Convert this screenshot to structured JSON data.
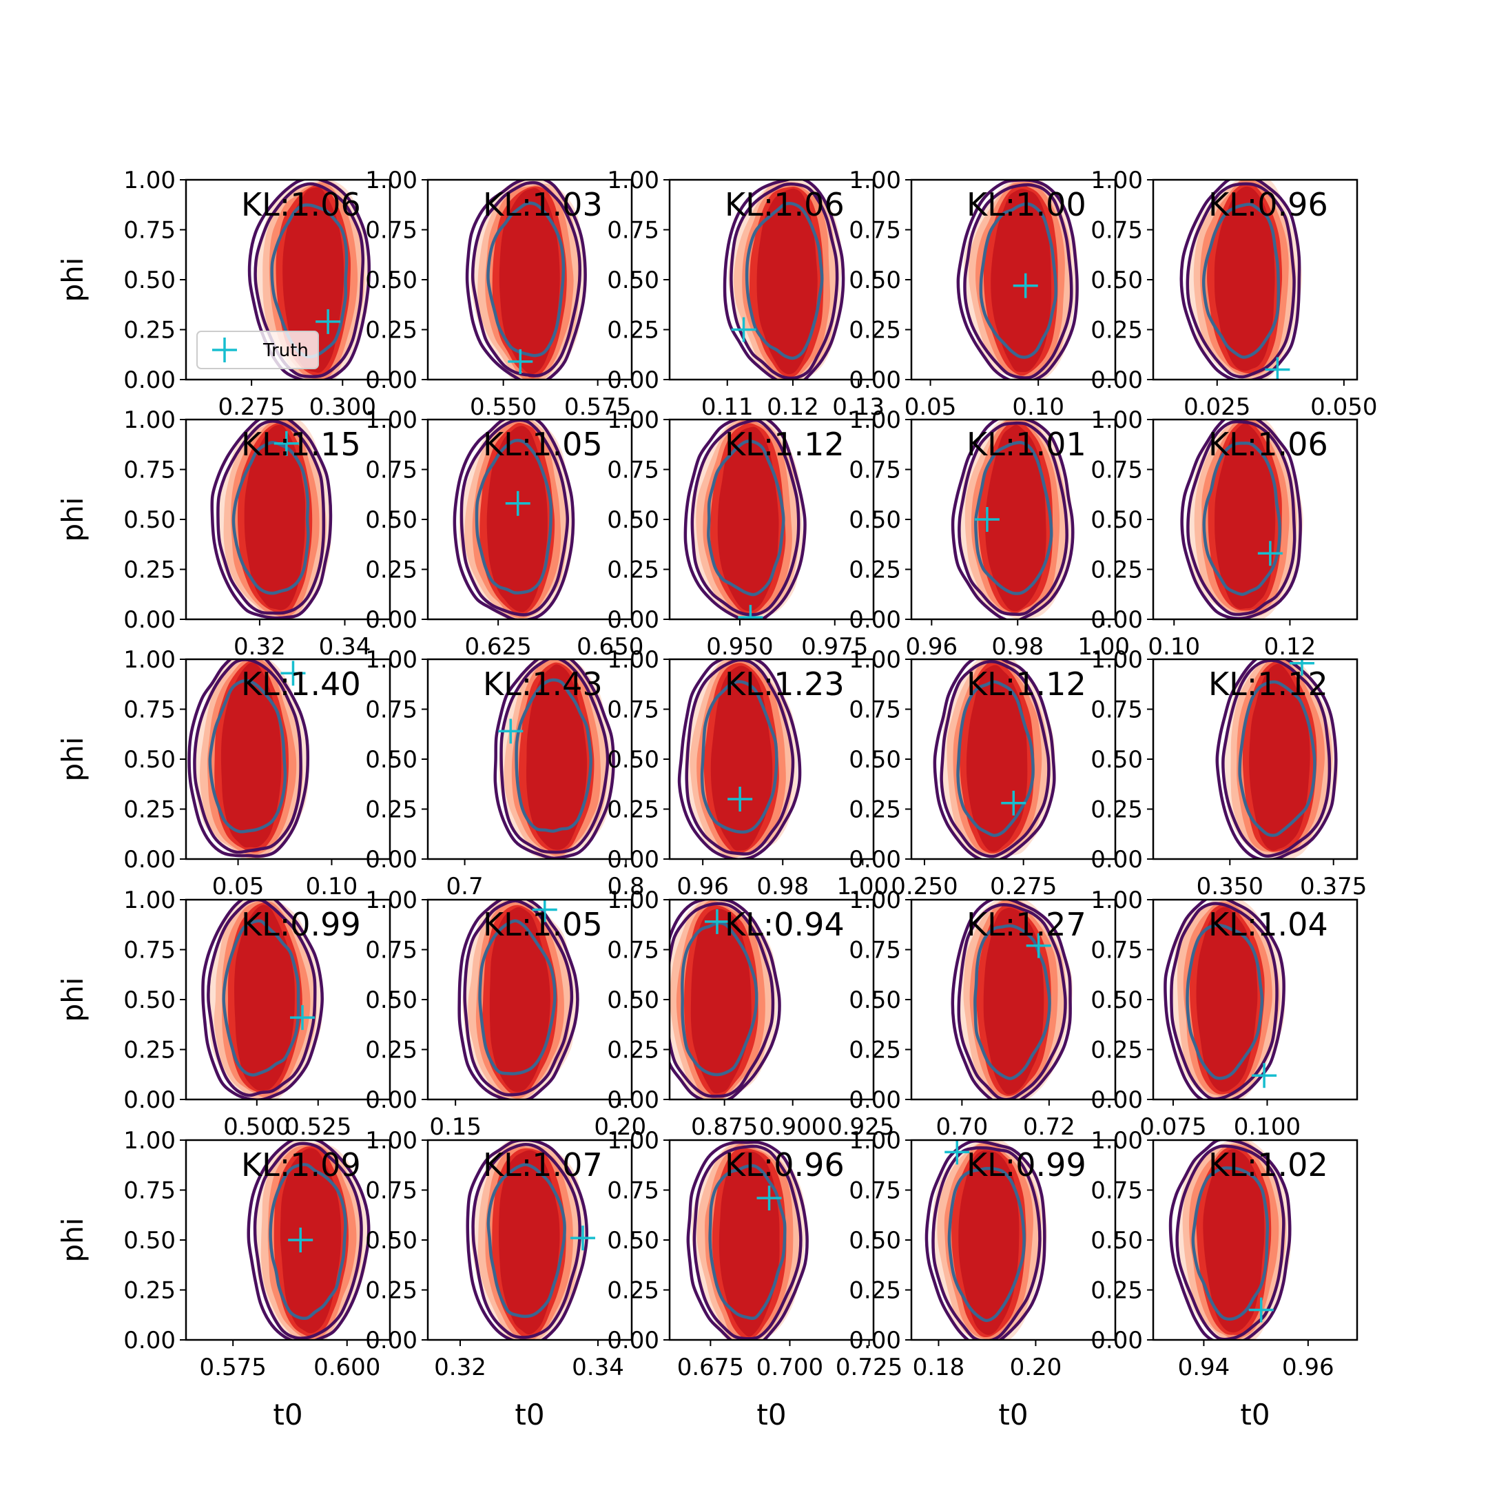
{
  "colors": {
    "fill_outer": "#fde0d2",
    "fill_mid1": "#fcbba1",
    "fill_mid2": "#fb8a6b",
    "fill_inner1": "#e32f27",
    "fill_inner2": "#c9181d",
    "contour_outer": "#4a0f5e",
    "contour_inner": "#3a6690",
    "truth": "#17becf"
  },
  "chart_data": [
    {
      "type": "contour",
      "panel": 1,
      "kl": "KL:1.06",
      "xlabel": "",
      "ylabel": "phi",
      "xlim": [
        0.257,
        0.313
      ],
      "ylim": [
        0,
        1
      ],
      "x_ticks": [
        "0.275",
        "0.300"
      ],
      "x_tick_values": [
        0.275,
        0.3
      ],
      "y_ticks": [
        "0.00",
        "0.25",
        "0.50",
        "0.75",
        "1.00"
      ],
      "center_x": 0.292,
      "truth": {
        "x": 0.296,
        "y": 0.29
      },
      "legend": {
        "label": "Truth",
        "location": "lower-left"
      }
    },
    {
      "type": "contour",
      "panel": 2,
      "kl": "KL:1.03",
      "xlabel": "",
      "ylabel": "",
      "xlim": [
        0.53,
        0.584
      ],
      "ylim": [
        0,
        1
      ],
      "x_ticks": [
        "0.550",
        "0.575"
      ],
      "x_tick_values": [
        0.55,
        0.575
      ],
      "y_ticks": [
        "0.00",
        "0.25",
        "0.50",
        "0.75",
        "1.00"
      ],
      "center_x": 0.557,
      "truth": {
        "x": 0.5545,
        "y": 0.09
      }
    },
    {
      "type": "contour",
      "panel": 3,
      "kl": "KL:1.06",
      "xlabel": "",
      "ylabel": "",
      "xlim": [
        0.1012,
        0.1323
      ],
      "ylim": [
        0,
        1
      ],
      "x_ticks": [
        "0.11",
        "0.12",
        "0.13"
      ],
      "x_tick_values": [
        0.11,
        0.12,
        0.13
      ],
      "y_ticks": [
        "0.00",
        "0.25",
        "0.50",
        "0.75",
        "1.00"
      ],
      "center_x": 0.1192,
      "truth": {
        "x": 0.1125,
        "y": 0.25
      }
    },
    {
      "type": "contour",
      "panel": 4,
      "kl": "KL:1.00",
      "xlabel": "",
      "ylabel": "",
      "xlim": [
        0.0412,
        0.1357
      ],
      "ylim": [
        0,
        1
      ],
      "x_ticks": [
        "0.05",
        "0.10"
      ],
      "x_tick_values": [
        0.05,
        0.1
      ],
      "y_ticks": [
        "0.00",
        "0.25",
        "0.50",
        "0.75",
        "1.00"
      ],
      "center_x": 0.0925,
      "truth": {
        "x": 0.0941,
        "y": 0.47
      }
    },
    {
      "type": "contour",
      "panel": 5,
      "kl": "KL:0.96",
      "xlabel": "",
      "ylabel": "",
      "xlim": [
        0.0124,
        0.0526
      ],
      "ylim": [
        0,
        1
      ],
      "x_ticks": [
        "0.025",
        "0.050"
      ],
      "x_tick_values": [
        0.025,
        0.05
      ],
      "y_ticks": [
        "0.00",
        "0.25",
        "0.50",
        "0.75",
        "1.00"
      ],
      "center_x": 0.0306,
      "truth": {
        "x": 0.0369,
        "y": 0.05
      }
    },
    {
      "type": "contour",
      "panel": 6,
      "kl": "KL:1.15",
      "xlabel": "",
      "ylabel": "phi",
      "xlim": [
        0.3027,
        0.3506
      ],
      "ylim": [
        0,
        1
      ],
      "x_ticks": [
        "0.32",
        "0.34"
      ],
      "x_tick_values": [
        0.32,
        0.34
      ],
      "y_ticks": [
        "0.00",
        "0.25",
        "0.50",
        "0.75",
        "1.00"
      ],
      "center_x": 0.3237,
      "truth": {
        "x": 0.3263,
        "y": 0.88
      }
    },
    {
      "type": "contour",
      "panel": 7,
      "kl": "KL:1.05",
      "xlabel": "",
      "ylabel": "",
      "xlim": [
        0.6093,
        0.6548
      ],
      "ylim": [
        0,
        1
      ],
      "x_ticks": [
        "0.625",
        "0.650"
      ],
      "x_tick_values": [
        0.625,
        0.65
      ],
      "y_ticks": [
        "0.00",
        "0.25",
        "0.50",
        "0.75",
        "1.00"
      ],
      "center_x": 0.6293,
      "truth": {
        "x": 0.6294,
        "y": 0.58
      }
    },
    {
      "type": "contour",
      "panel": 8,
      "kl": "KL:1.12",
      "xlabel": "",
      "ylabel": "",
      "xlim": [
        0.9315,
        0.9852
      ],
      "ylim": [
        0,
        1
      ],
      "x_ticks": [
        "0.950",
        "0.975"
      ],
      "x_tick_values": [
        0.95,
        0.975
      ],
      "y_ticks": [
        "0.00",
        "0.25",
        "0.50",
        "0.75",
        "1.00"
      ],
      "center_x": 0.9523,
      "truth": {
        "x": 0.9528,
        "y": 0.01
      }
    },
    {
      "type": "contour",
      "panel": 9,
      "kl": "KL:1.01",
      "xlabel": "",
      "ylabel": "",
      "xlim": [
        0.9553,
        1.0027
      ],
      "ylim": [
        0,
        1
      ],
      "x_ticks": [
        "0.96",
        "0.98",
        "1.00"
      ],
      "x_tick_values": [
        0.96,
        0.98,
        1.0
      ],
      "y_ticks": [
        "0.00",
        "0.25",
        "0.50",
        "0.75",
        "1.00"
      ],
      "center_x": 0.9797,
      "truth": {
        "x": 0.9729,
        "y": 0.5
      }
    },
    {
      "type": "contour",
      "panel": 10,
      "kl": "KL:1.06",
      "xlabel": "",
      "ylabel": "",
      "xlim": [
        0.0964,
        0.1316
      ],
      "ylim": [
        0,
        1
      ],
      "x_ticks": [
        "0.10",
        "0.12"
      ],
      "x_tick_values": [
        0.1,
        0.12
      ],
      "y_ticks": [
        "0.00",
        "0.25",
        "0.50",
        "0.75",
        "1.00"
      ],
      "center_x": 0.1123,
      "truth": {
        "x": 0.1166,
        "y": 0.33
      }
    },
    {
      "type": "contour",
      "panel": 11,
      "kl": "KL:1.40",
      "xlabel": "",
      "ylabel": "phi",
      "xlim": [
        0.0222,
        0.1311
      ],
      "ylim": [
        0,
        1
      ],
      "x_ticks": [
        "0.05",
        "0.10"
      ],
      "x_tick_values": [
        0.05,
        0.1
      ],
      "y_ticks": [
        "0.00",
        "0.25",
        "0.50",
        "0.75",
        "1.00"
      ],
      "center_x": 0.0569,
      "truth": {
        "x": 0.0794,
        "y": 0.93
      }
    },
    {
      "type": "contour",
      "panel": 12,
      "kl": "KL:1.43",
      "xlabel": "",
      "ylabel": "",
      "xlim": [
        0.6771,
        0.8036
      ],
      "ylim": [
        0,
        1
      ],
      "x_ticks": [
        "0.7",
        "0.8"
      ],
      "x_tick_values": [
        0.7,
        0.8
      ],
      "y_ticks": [
        "0.00",
        "0.25",
        "0.50",
        "0.75",
        "1.00"
      ],
      "center_x": 0.7566,
      "truth": {
        "x": 0.7285,
        "y": 0.64
      }
    },
    {
      "type": "contour",
      "panel": 13,
      "kl": "KL:1.23",
      "xlabel": "",
      "ylabel": "",
      "xlim": [
        0.9517,
        1.0027
      ],
      "ylim": [
        0,
        1
      ],
      "x_ticks": [
        "0.96",
        "0.98",
        "1.00"
      ],
      "x_tick_values": [
        0.96,
        0.98,
        1.0
      ],
      "y_ticks": [
        "0.00",
        "0.25",
        "0.50",
        "0.75",
        "1.00"
      ],
      "center_x": 0.9696,
      "truth": {
        "x": 0.9693,
        "y": 0.3
      }
    },
    {
      "type": "contour",
      "panel": 14,
      "kl": "KL:1.12",
      "xlabel": "",
      "ylabel": "",
      "xlim": [
        0.2467,
        0.2982
      ],
      "ylim": [
        0,
        1
      ],
      "x_ticks": [
        "0.250",
        "0.275"
      ],
      "x_tick_values": [
        0.25,
        0.275
      ],
      "y_ticks": [
        "0.00",
        "0.25",
        "0.50",
        "0.75",
        "1.00"
      ],
      "center_x": 0.2683,
      "truth": {
        "x": 0.2725,
        "y": 0.28
      }
    },
    {
      "type": "contour",
      "panel": 15,
      "kl": "KL:1.12",
      "xlabel": "",
      "ylabel": "",
      "xlim": [
        0.3315,
        0.3807
      ],
      "ylim": [
        0,
        1
      ],
      "x_ticks": [
        "0.350",
        "0.375"
      ],
      "x_tick_values": [
        0.35,
        0.375
      ],
      "y_ticks": [
        "0.00",
        "0.25",
        "0.50",
        "0.75",
        "1.00"
      ],
      "center_x": 0.3619,
      "truth": {
        "x": 0.3674,
        "y": 0.98
      }
    },
    {
      "type": "contour",
      "panel": 16,
      "kl": "KL:0.99",
      "xlabel": "",
      "ylabel": "phi",
      "xlim": [
        0.4711,
        0.5543
      ],
      "ylim": [
        0,
        1
      ],
      "x_ticks": [
        "0.500",
        "0.525"
      ],
      "x_tick_values": [
        0.5,
        0.525
      ],
      "y_ticks": [
        "0.00",
        "0.25",
        "0.50",
        "0.75",
        "1.00"
      ],
      "center_x": 0.5028,
      "truth": {
        "x": 0.5186,
        "y": 0.41
      }
    },
    {
      "type": "contour",
      "panel": 17,
      "kl": "KL:1.05",
      "xlabel": "",
      "ylabel": "",
      "xlim": [
        0.1416,
        0.2035
      ],
      "ylim": [
        0,
        1
      ],
      "x_ticks": [
        "0.15",
        "0.20"
      ],
      "x_tick_values": [
        0.15,
        0.2
      ],
      "y_ticks": [
        "0.00",
        "0.25",
        "0.50",
        "0.75",
        "1.00"
      ],
      "center_x": 0.1692,
      "truth": {
        "x": 0.1771,
        "y": 0.95
      }
    },
    {
      "type": "contour",
      "panel": 18,
      "kl": "KL:0.94",
      "xlabel": "",
      "ylabel": "",
      "xlim": [
        0.8549,
        0.9296
      ],
      "ylim": [
        0,
        1
      ],
      "x_ticks": [
        "0.875",
        "0.900",
        "0.925"
      ],
      "x_tick_values": [
        0.875,
        0.9,
        0.925
      ],
      "y_ticks": [
        "0.00",
        "0.25",
        "0.50",
        "0.75",
        "1.00"
      ],
      "center_x": 0.8735,
      "truth": {
        "x": 0.8723,
        "y": 0.89
      }
    },
    {
      "type": "contour",
      "panel": 19,
      "kl": "KL:1.27",
      "xlabel": "",
      "ylabel": "",
      "xlim": [
        0.6884,
        0.7352
      ],
      "ylim": [
        0,
        1
      ],
      "x_ticks": [
        "0.70",
        "0.72"
      ],
      "x_tick_values": [
        0.7,
        0.72
      ],
      "y_ticks": [
        "0.00",
        "0.25",
        "0.50",
        "0.75",
        "1.00"
      ],
      "center_x": 0.7118,
      "truth": {
        "x": 0.7176,
        "y": 0.77
      }
    },
    {
      "type": "contour",
      "panel": 20,
      "kl": "KL:1.04",
      "xlabel": "",
      "ylabel": "",
      "xlim": [
        0.0697,
        0.1239
      ],
      "ylim": [
        0,
        1
      ],
      "x_ticks": [
        "0.075",
        "0.100"
      ],
      "x_tick_values": [
        0.075,
        0.1
      ],
      "y_ticks": [
        "0.00",
        "0.25",
        "0.50",
        "0.75",
        "1.00"
      ],
      "center_x": 0.0892,
      "truth": {
        "x": 0.0992,
        "y": 0.12
      }
    },
    {
      "type": "contour",
      "panel": 21,
      "kl": "KL:1.09",
      "xlabel": "t0",
      "ylabel": "phi",
      "xlim": [
        0.5647,
        0.6094
      ],
      "ylim": [
        0,
        1
      ],
      "x_ticks": [
        "0.575",
        "0.600"
      ],
      "x_tick_values": [
        0.575,
        0.6
      ],
      "y_ticks": [
        "0.00",
        "0.25",
        "0.50",
        "0.75",
        "1.00"
      ],
      "center_x": 0.5919,
      "truth": {
        "x": 0.5898,
        "y": 0.5
      }
    },
    {
      "type": "contour",
      "panel": 22,
      "kl": "KL:1.07",
      "xlabel": "t0",
      "ylabel": "",
      "xlim": [
        0.3153,
        0.3449
      ],
      "ylim": [
        0,
        1
      ],
      "x_ticks": [
        "0.32",
        "0.34"
      ],
      "x_tick_values": [
        0.32,
        0.34
      ],
      "y_ticks": [
        "0.00",
        "0.25",
        "0.50",
        "0.75",
        "1.00"
      ],
      "center_x": 0.3299,
      "truth": {
        "x": 0.3378,
        "y": 0.51
      }
    },
    {
      "type": "contour",
      "panel": 23,
      "kl": "KL:0.96",
      "xlabel": "t0",
      "ylabel": "",
      "xlim": [
        0.6621,
        0.7264
      ],
      "ylim": [
        0,
        1
      ],
      "x_ticks": [
        "0.675",
        "0.700",
        "0.725"
      ],
      "x_tick_values": [
        0.675,
        0.7,
        0.725
      ],
      "y_ticks": [
        "0.00",
        "0.25",
        "0.50",
        "0.75",
        "1.00"
      ],
      "center_x": 0.6872,
      "truth": {
        "x": 0.6935,
        "y": 0.71
      }
    },
    {
      "type": "contour",
      "panel": 24,
      "kl": "KL:0.99",
      "xlabel": "t0",
      "ylabel": "",
      "xlim": [
        0.1744,
        0.2164
      ],
      "ylim": [
        0,
        1
      ],
      "x_ticks": [
        "0.18",
        "0.20"
      ],
      "x_tick_values": [
        0.18,
        0.2
      ],
      "y_ticks": [
        "0.00",
        "0.25",
        "0.50",
        "0.75",
        "1.00"
      ],
      "center_x": 0.1904,
      "truth": {
        "x": 0.1838,
        "y": 0.94
      }
    },
    {
      "type": "contour",
      "panel": 25,
      "kl": "KL:1.02",
      "xlabel": "t0",
      "ylabel": "",
      "xlim": [
        0.9303,
        0.9694
      ],
      "ylim": [
        0,
        1
      ],
      "x_ticks": [
        "0.94",
        "0.96"
      ],
      "x_tick_values": [
        0.94,
        0.96
      ],
      "y_ticks": [
        "0.00",
        "0.25",
        "0.50",
        "0.75",
        "1.00"
      ],
      "center_x": 0.9458,
      "truth": {
        "x": 0.951,
        "y": 0.15
      }
    }
  ]
}
